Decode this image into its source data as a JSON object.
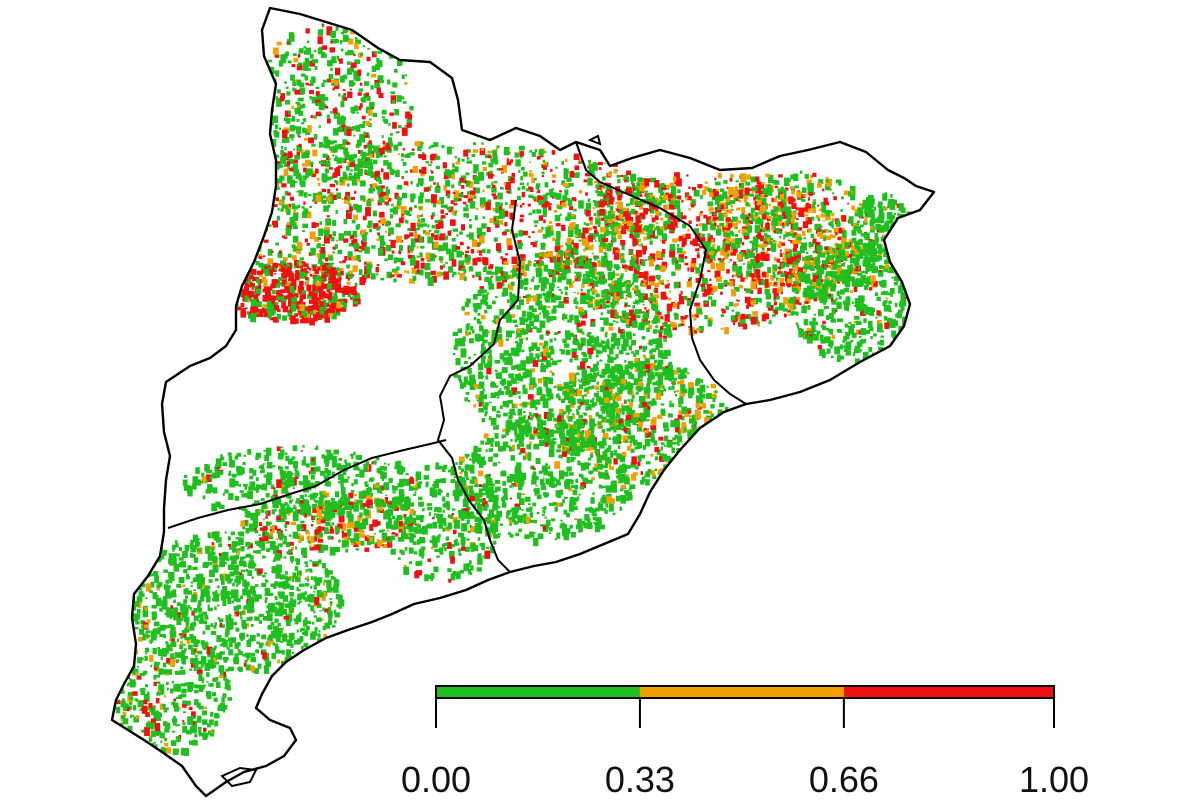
{
  "map": {
    "region_outline_color": "#000000",
    "background_color": "#ffffff"
  },
  "legend": {
    "segments": [
      {
        "from": 0.0,
        "to": 0.33,
        "color": "#1fbf1f"
      },
      {
        "from": 0.33,
        "to": 0.66,
        "color": "#f0a000"
      },
      {
        "from": 0.66,
        "to": 1.0,
        "color": "#f01010"
      }
    ],
    "ticks": [
      "0.00",
      "0.33",
      "0.66",
      "1.00"
    ]
  }
}
